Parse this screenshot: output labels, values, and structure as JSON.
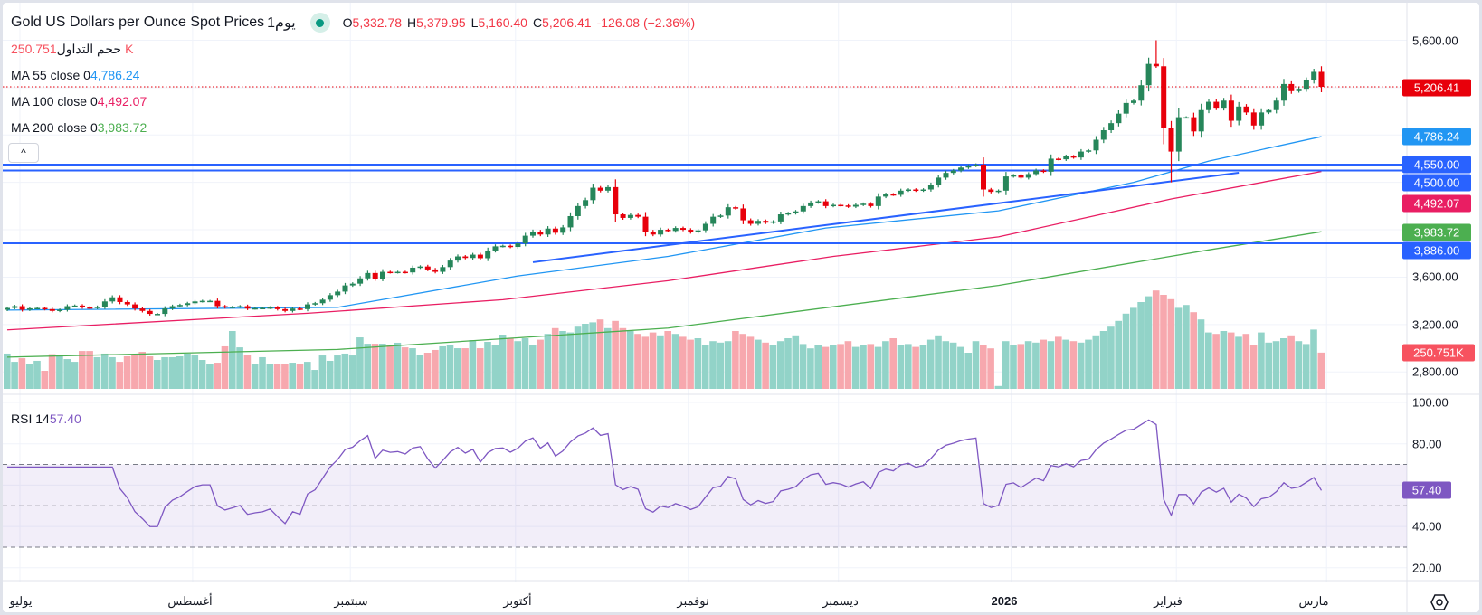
{
  "header": {
    "title": "Gold US Dollars per Ounce Spot Prices",
    "interval": "1يوم",
    "o_label": "O",
    "o_value": "5,332.78",
    "h_label": "H",
    "h_value": "5,379.95",
    "l_label": "L",
    "l_value": "5,160.40",
    "c_label": "C",
    "c_value": "5,206.41",
    "change": "-126.08 (−2.36%)"
  },
  "legend": {
    "volume_label": "حجم التداول",
    "volume_value": "250.751K",
    "ma55_label": "MA  55 close 0",
    "ma55_value": "4,786.24",
    "ma100_label": "MA  100 close 0",
    "ma100_value": "4,492.07",
    "ma200_label": "MA  200 close 0",
    "ma200_value": "3,983.72",
    "rsi_label": "RSI  14",
    "rsi_value": "57.40",
    "collapse_icon": "^"
  },
  "price_axis": {
    "labels": [
      "5,600.00",
      "3,600.00",
      "3,200.00",
      "2,800.00"
    ],
    "badges": {
      "last": "5,206.41",
      "ma55": "4,786.24",
      "h4550": "4,550.00",
      "h4500": "4,500.00",
      "ma100": "4,492.07",
      "ma200": "3,983.72",
      "h3886": "3,886.00",
      "volume": "250.751K"
    }
  },
  "rsi_axis": {
    "labels": [
      "100.00",
      "80.00",
      "40.00",
      "20.00"
    ],
    "badge": "57.40"
  },
  "time_axis": [
    "يوليو",
    "أغسطس",
    "سبتمبر",
    "أكتوبر",
    "نوفمبر",
    "ديسمبر",
    "2026",
    "فبراير",
    "مارس"
  ],
  "colors": {
    "up": "#26865a",
    "down": "#e8000b",
    "vol_up": "#92d3c8",
    "vol_down": "#f7a8ae",
    "hline": "#2962ff",
    "ma55": "#2196f3",
    "ma100": "#e91e63",
    "ma200": "#4caf50",
    "rsi": "#7e57c2"
  },
  "chart_data": {
    "type": "candlestick",
    "title": "Gold US Dollars per Ounce Spot Prices, 1D",
    "price_range": [
      2650,
      5650
    ],
    "month_start_index": [
      0,
      23,
      44,
      66,
      89,
      109,
      132,
      154,
      174
    ],
    "closes": [
      3340,
      3355,
      3325,
      3337,
      3340,
      3330,
      3315,
      3325,
      3355,
      3360,
      3345,
      3340,
      3350,
      3395,
      3430,
      3390,
      3370,
      3335,
      3315,
      3290,
      3290,
      3335,
      3355,
      3365,
      3380,
      3395,
      3400,
      3400,
      3355,
      3345,
      3350,
      3355,
      3335,
      3338,
      3340,
      3345,
      3330,
      3315,
      3335,
      3330,
      3370,
      3380,
      3410,
      3448,
      3478,
      3530,
      3545,
      3590,
      3635,
      3588,
      3645,
      3640,
      3645,
      3640,
      3680,
      3690,
      3665,
      3645,
      3685,
      3740,
      3775,
      3762,
      3790,
      3760,
      3825,
      3860,
      3865,
      3855,
      3885,
      3950,
      3985,
      3960,
      4010,
      3975,
      4020,
      4115,
      4200,
      4250,
      4355,
      4330,
      4360,
      4130,
      4100,
      4125,
      4110,
      3985,
      3960,
      4000,
      3990,
      4015,
      4000,
      3980,
      3995,
      4050,
      4110,
      4120,
      4190,
      4180,
      4080,
      4050,
      4075,
      4060,
      4070,
      4130,
      4140,
      4155,
      4200,
      4230,
      4240,
      4200,
      4210,
      4205,
      4195,
      4210,
      4220,
      4200,
      4280,
      4300,
      4295,
      4330,
      4340,
      4330,
      4340,
      4380,
      4440,
      4480,
      4500,
      4525,
      4540,
      4550,
      4340,
      4320,
      4330,
      4450,
      4460,
      4440,
      4470,
      4500,
      4490,
      4600,
      4595,
      4620,
      4610,
      4660,
      4670,
      4760,
      4840,
      4900,
      4980,
      5070,
      5090,
      5220,
      5400,
      5380,
      4860,
      4660,
      4950,
      4950,
      4830,
      5010,
      5080,
      5030,
      5090,
      4920,
      5040,
      4990,
      4880,
      4990,
      5010,
      5090,
      5230,
      5170,
      5190,
      5260,
      5332.78,
      5206.41
    ],
    "last_candle": {
      "open": 5332.78,
      "high": 5379.95,
      "low": 5160.4,
      "close": 5206.41
    },
    "wick_extremes": [
      {
        "index": 153,
        "high": 5600
      },
      {
        "index": 154,
        "high": 5450
      },
      {
        "index": 155,
        "low": 4400
      }
    ],
    "volume_k": [
      244,
      187,
      212,
      169,
      194,
      125,
      240,
      231,
      206,
      187,
      262,
      262,
      219,
      244,
      219,
      187,
      225,
      237,
      256,
      225,
      200,
      219,
      219,
      225,
      244,
      237,
      200,
      175,
      181,
      294,
      400,
      287,
      237,
      175,
      219,
      175,
      175,
      175,
      181,
      175,
      187,
      131,
      231,
      194,
      231,
      244,
      231,
      356,
      312,
      312,
      312,
      306,
      319,
      287,
      281,
      237,
      250,
      269,
      294,
      306,
      281,
      281,
      337,
      281,
      325,
      300,
      375,
      350,
      330,
      350,
      300,
      340,
      380,
      420,
      400,
      390,
      430,
      450,
      460,
      480,
      420,
      470,
      420,
      400,
      380,
      360,
      390,
      370,
      400,
      380,
      360,
      340,
      350,
      300,
      330,
      320,
      330,
      400,
      380,
      360,
      340,
      320,
      300,
      330,
      350,
      370,
      310,
      280,
      300,
      290,
      300,
      310,
      330,
      290,
      300,
      310,
      290,
      330,
      350,
      300,
      310,
      290,
      300,
      340,
      370,
      330,
      320,
      290,
      250,
      330,
      300,
      280,
      20,
      330,
      300,
      310,
      330,
      320,
      340,
      330,
      360,
      340,
      330,
      320,
      340,
      370,
      400,
      430,
      470,
      520,
      560,
      600,
      640,
      680,
      650,
      620,
      560,
      580,
      530,
      480,
      390,
      380,
      400,
      390,
      360,
      380,
      300,
      390,
      320,
      330,
      350,
      370,
      330,
      310,
      410,
      250.751
    ],
    "ma55": [
      [
        0,
        3322
      ],
      [
        44,
        3345
      ],
      [
        68,
        3610
      ],
      [
        88,
        3775
      ],
      [
        109,
        4015
      ],
      [
        132,
        4160
      ],
      [
        150,
        4400
      ],
      [
        160,
        4580
      ],
      [
        175,
        4786.24
      ]
    ],
    "ma100": [
      [
        0,
        3155
      ],
      [
        40,
        3295
      ],
      [
        66,
        3410
      ],
      [
        88,
        3570
      ],
      [
        110,
        3775
      ],
      [
        132,
        3940
      ],
      [
        155,
        4260
      ],
      [
        175,
        4492.07
      ]
    ],
    "ma200": [
      [
        0,
        2925
      ],
      [
        44,
        2990
      ],
      [
        88,
        3170
      ],
      [
        132,
        3530
      ],
      [
        160,
        3830
      ],
      [
        175,
        3983.72
      ]
    ],
    "horizontal_levels": [
      4550,
      4500,
      3886
    ],
    "trendline": [
      [
        70,
        3726
      ],
      [
        164,
        4481
      ]
    ],
    "rsi": {
      "period": 14,
      "last": 57.4,
      "range": [
        0,
        100
      ],
      "bands": [
        30,
        50,
        70
      ]
    }
  }
}
